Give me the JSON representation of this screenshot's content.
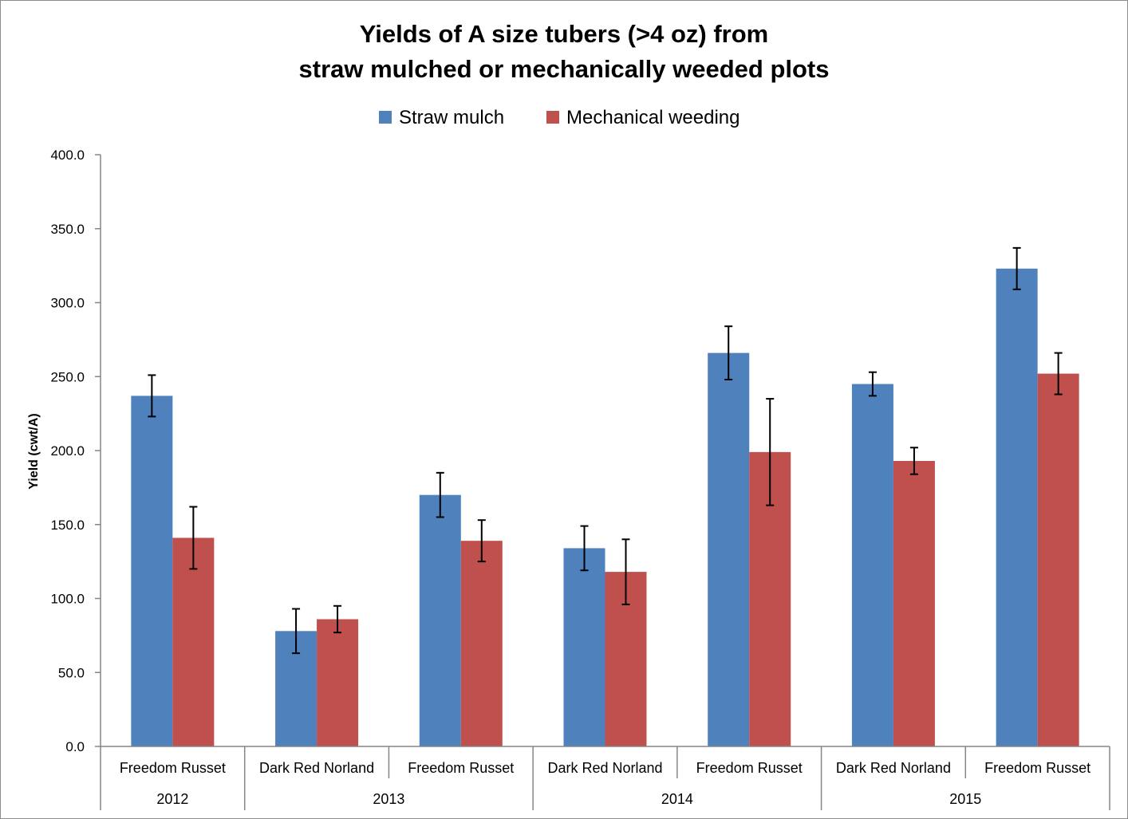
{
  "chart_data": {
    "type": "bar",
    "title_lines": [
      "Yields of A size tubers (>4 oz) from",
      "straw mulched or mechanically weeded plots"
    ],
    "ylabel": "Yield (cwt/A)",
    "xlabel": "",
    "ylim": [
      0,
      400
    ],
    "yticks": [
      0,
      50,
      100,
      150,
      200,
      250,
      300,
      350,
      400
    ],
    "ytick_labels": [
      "0.0",
      "50.0",
      "100.0",
      "150.0",
      "200.0",
      "250.0",
      "300.0",
      "350.0",
      "400.0"
    ],
    "legend_position": "top-center",
    "grid": false,
    "categories": [
      "Freedom Russet",
      "Dark Red Norland",
      "Freedom Russet",
      "Dark Red Norland",
      "Freedom Russet",
      "Dark Red Norland",
      "Freedom Russet"
    ],
    "year_groups": [
      {
        "label": "2012",
        "span": 1
      },
      {
        "label": "2013",
        "span": 2
      },
      {
        "label": "2014",
        "span": 2
      },
      {
        "label": "2015",
        "span": 2
      }
    ],
    "series": [
      {
        "name": "Straw mulch",
        "color": "#4f81bd",
        "values": [
          237,
          78,
          170,
          134,
          266,
          245,
          323
        ],
        "error": [
          14,
          15,
          15,
          15,
          18,
          8,
          14
        ]
      },
      {
        "name": "Mechanical weeding",
        "color": "#c0504d",
        "values": [
          141,
          86,
          139,
          118,
          199,
          193,
          252
        ],
        "error": [
          21,
          9,
          14,
          22,
          36,
          9,
          14
        ]
      }
    ]
  }
}
